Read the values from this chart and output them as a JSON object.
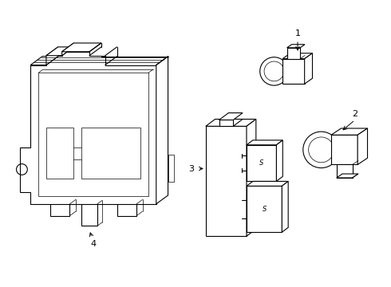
{
  "background_color": "#ffffff",
  "line_color": "#000000",
  "lw": 0.8,
  "tlw": 0.5,
  "label_fontsize": 8
}
